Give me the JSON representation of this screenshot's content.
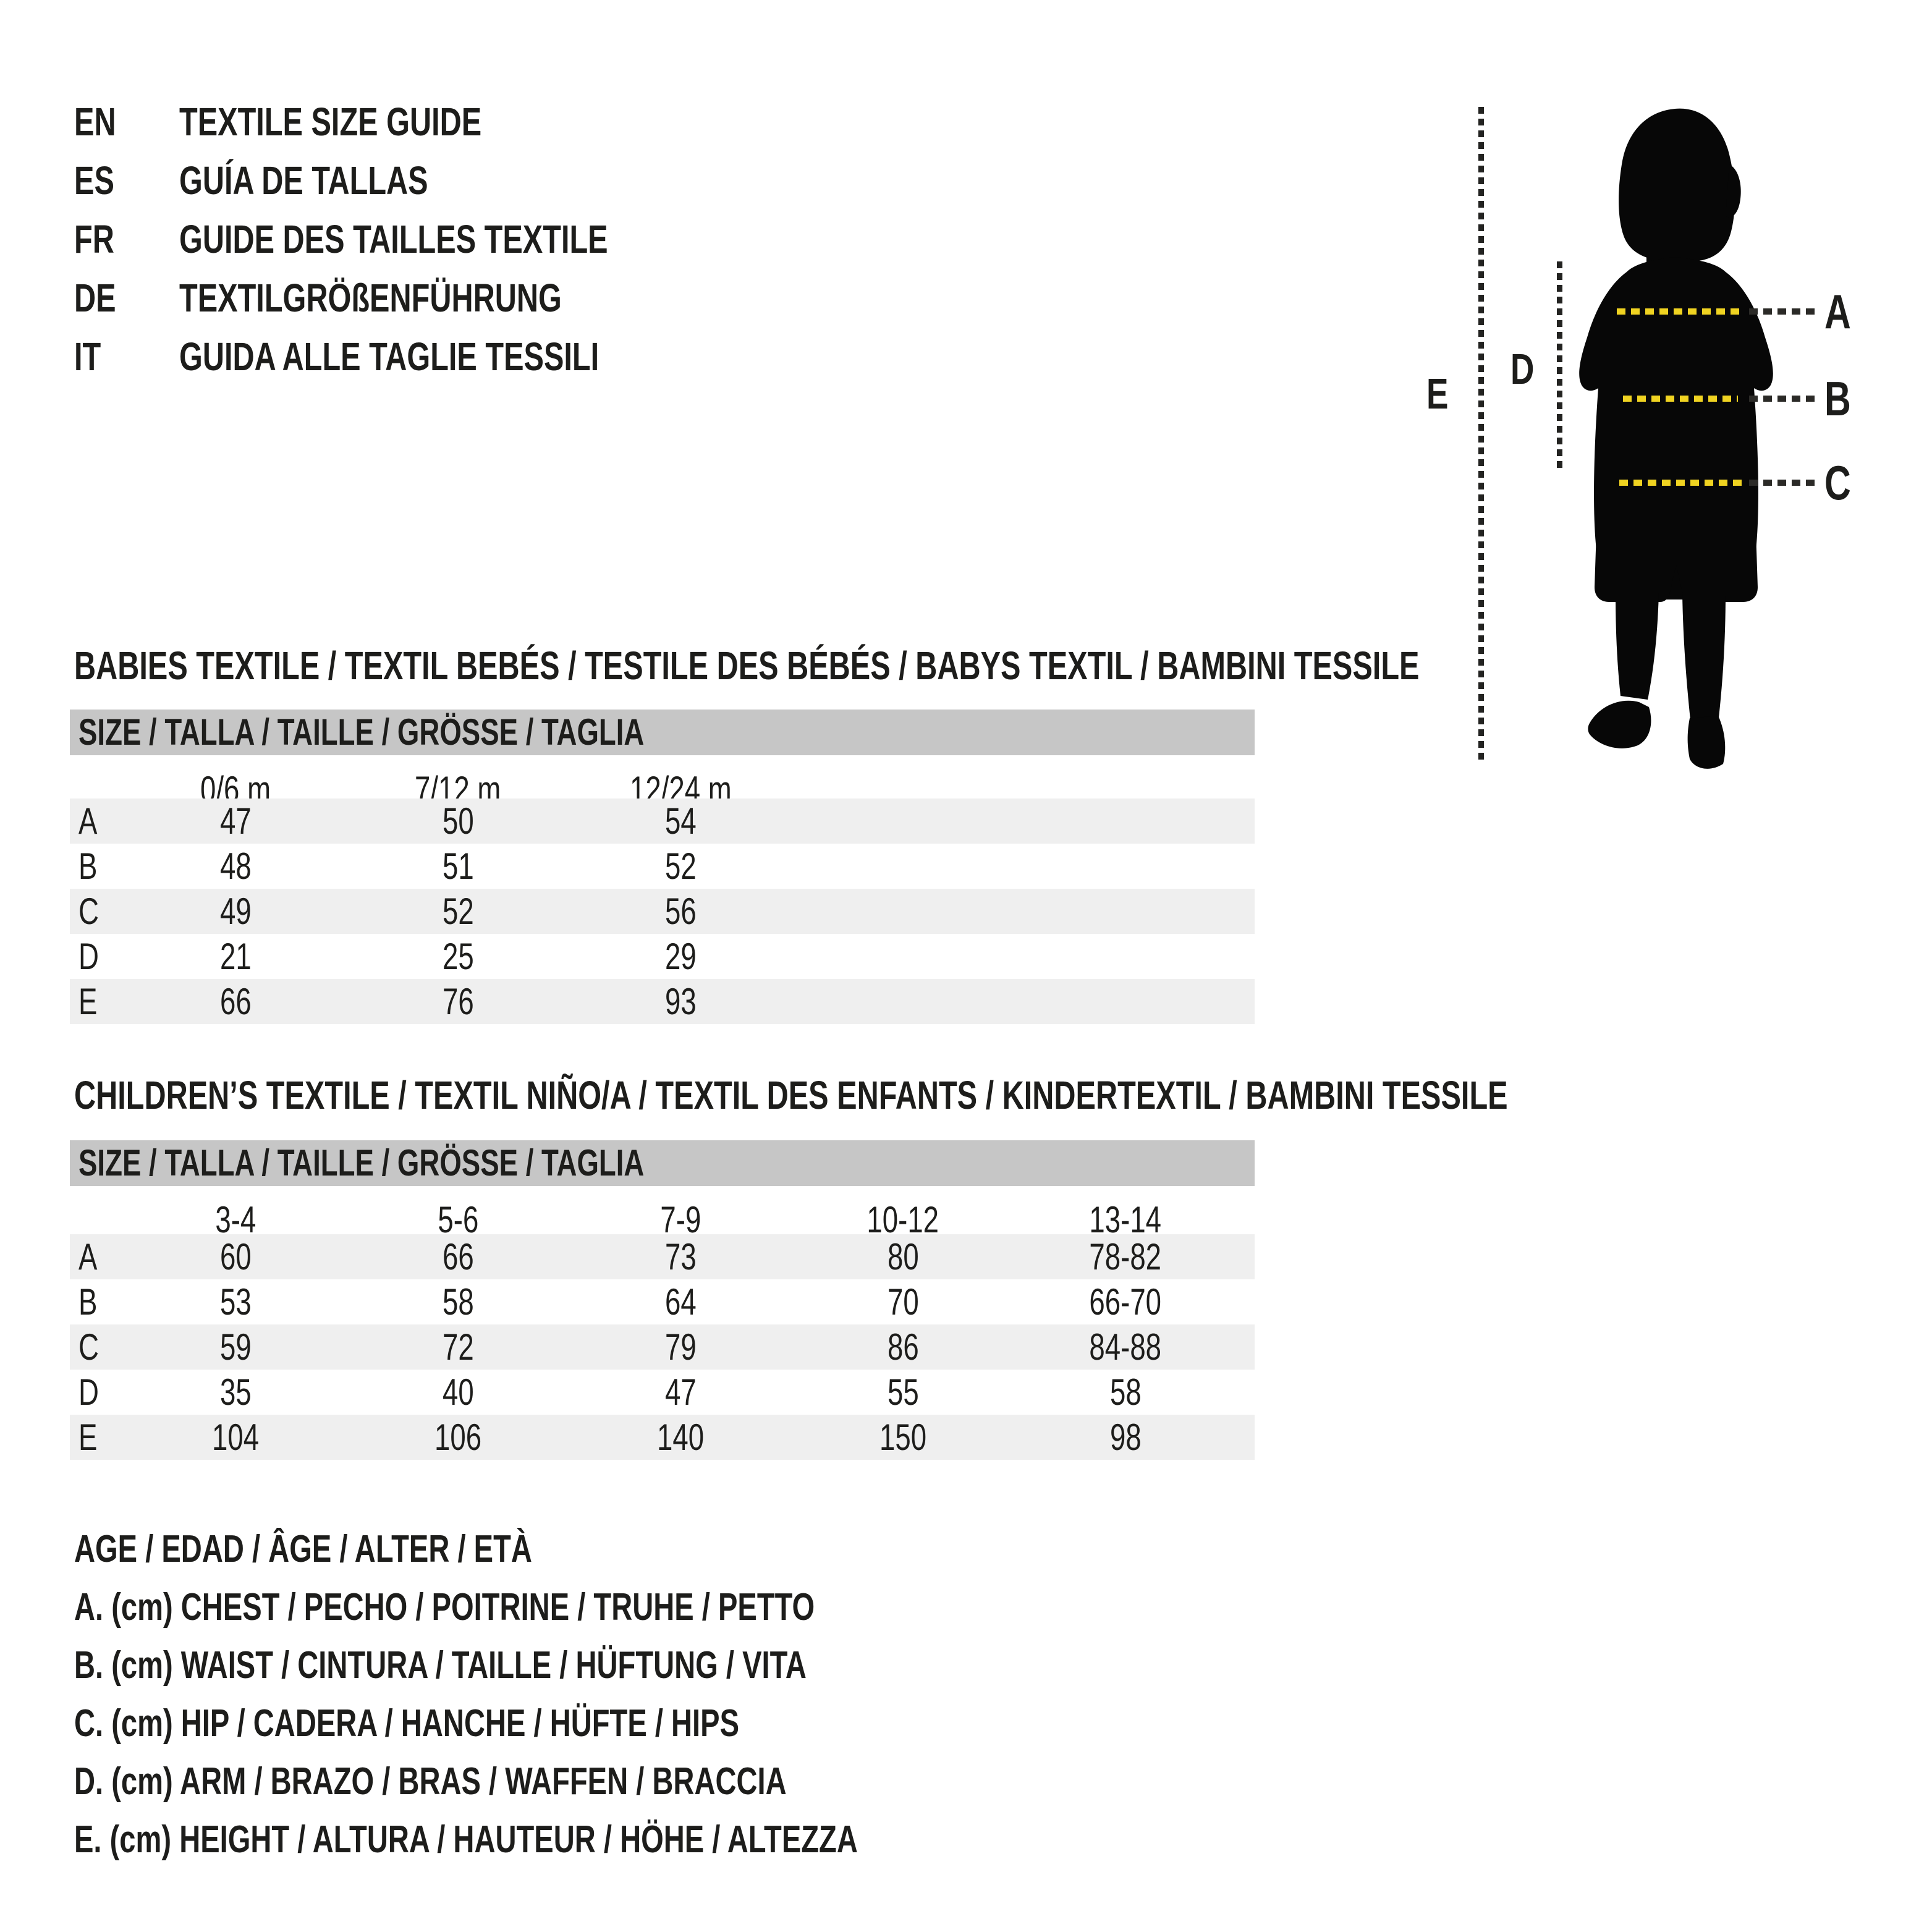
{
  "title": "Textile size guide",
  "languages": [
    {
      "code": "EN",
      "label": "TEXTILE SIZE GUIDE"
    },
    {
      "code": "ES",
      "label": "GUÍA DE TALLAS"
    },
    {
      "code": "FR",
      "label": "GUIDE DES TAILLES TEXTILE"
    },
    {
      "code": "DE",
      "label": "TEXTILGRÖßENFÜHRUNG"
    },
    {
      "code": "IT",
      "label": "GUIDA ALLE TAGLIE TESSILI"
    }
  ],
  "diagram": {
    "markers": [
      "A",
      "B",
      "C"
    ],
    "arm_label": "D",
    "height_label": "E",
    "colors": {
      "measure_line_yellow": "#f0d321",
      "measure_line_dark": "#2b2a27",
      "silhouette_black": "#070707"
    }
  },
  "babies": {
    "heading": "BABIES TEXTILE / TEXTIL BEBÉS / TESTILE DES BÉBÉS / BABYS TEXTIL / BAMBINI TESSILE",
    "size_header": "SIZE / TALLA / TAILLE / GRÖSSE / TAGLIA",
    "columns": [
      "0/6 m",
      "7/12 m",
      "12/24 m"
    ],
    "rows": [
      {
        "label": "A",
        "values": [
          "47",
          "50",
          "54"
        ]
      },
      {
        "label": "B",
        "values": [
          "48",
          "51",
          "52"
        ]
      },
      {
        "label": "C",
        "values": [
          "49",
          "52",
          "56"
        ]
      },
      {
        "label": "D",
        "values": [
          "21",
          "25",
          "29"
        ]
      },
      {
        "label": "E",
        "values": [
          "66",
          "76",
          "93"
        ]
      }
    ]
  },
  "children": {
    "heading": "CHILDREN’S TEXTILE / TEXTIL NIÑO/A / TEXTIL DES ENFANTS / KINDERTEXTIL / BAMBINI TESSILE",
    "size_header": "SIZE / TALLA / TAILLE / GRÖSSE / TAGLIA",
    "columns": [
      "3-4",
      "5-6",
      "7-9",
      "10-12",
      "13-14"
    ],
    "rows": [
      {
        "label": "A",
        "values": [
          "60",
          "66",
          "73",
          "80",
          "78-82"
        ]
      },
      {
        "label": "B",
        "values": [
          "53",
          "58",
          "64",
          "70",
          "66-70"
        ]
      },
      {
        "label": "C",
        "values": [
          "59",
          "72",
          "79",
          "86",
          "84-88"
        ]
      },
      {
        "label": "D",
        "values": [
          "35",
          "40",
          "47",
          "55",
          "58"
        ]
      },
      {
        "label": "E",
        "values": [
          "104",
          "106",
          "140",
          "150",
          "98"
        ]
      }
    ]
  },
  "legend": {
    "lines": [
      "AGE / EDAD / ÂGE / ALTER / ETÀ",
      "A. (cm) CHEST / PECHO / POITRINE / TRUHE / PETTO",
      "B. (cm) WAIST / CINTURA / TAILLE / HÜFTUNG / VITA",
      "C. (cm) HIP / CADERA / HANCHE / HÜFTE / HIPS",
      "D. (cm) ARM / BRAZO / BRAS / WAFFEN / BRACCIA",
      "E. (cm) HEIGHT / ALTURA / HAUTEUR / HÖHE / ALTEZZA"
    ]
  }
}
